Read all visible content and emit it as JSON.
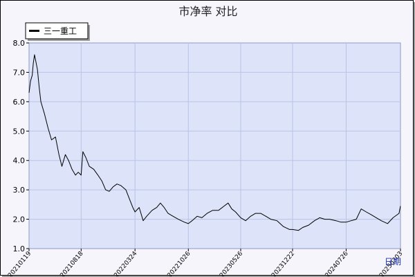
{
  "chart_data": {
    "type": "line",
    "title": "市净率  对比",
    "xlabel": "日期",
    "ylabel": "",
    "ylim": [
      1.0,
      8.0
    ],
    "yticks": [
      "1.0",
      "2.0",
      "3.0",
      "4.0",
      "5.0",
      "6.0",
      "7.0",
      "8.0"
    ],
    "xticks": [
      "20210119",
      "20210818",
      "20220324",
      "20221026",
      "20230526",
      "20231222",
      "20240726",
      "20250303"
    ],
    "grid": true,
    "legend_position": "top-left",
    "colors": {
      "plot_background": "#dde3f8",
      "grid": "#b9c3e6",
      "line": "#000000"
    },
    "series": [
      {
        "name": "三一重工",
        "points": [
          [
            "20210119",
            6.3
          ],
          [
            "20210125",
            6.7
          ],
          [
            "20210201",
            6.9
          ],
          [
            "20210205",
            7.3
          ],
          [
            "20210210",
            7.6
          ],
          [
            "20210222",
            7.1
          ],
          [
            "20210301",
            6.5
          ],
          [
            "20210308",
            6.0
          ],
          [
            "20210322",
            5.6
          ],
          [
            "20210406",
            5.1
          ],
          [
            "20210420",
            4.7
          ],
          [
            "20210506",
            4.8
          ],
          [
            "20210520",
            4.2
          ],
          [
            "20210601",
            3.8
          ],
          [
            "20210615",
            4.2
          ],
          [
            "20210628",
            4.0
          ],
          [
            "20210712",
            3.7
          ],
          [
            "20210726",
            3.5
          ],
          [
            "20210806",
            3.6
          ],
          [
            "20210818",
            3.5
          ],
          [
            "20210825",
            4.3
          ],
          [
            "20210906",
            4.1
          ],
          [
            "20210920",
            3.8
          ],
          [
            "20211008",
            3.7
          ],
          [
            "20211025",
            3.5
          ],
          [
            "20211110",
            3.3
          ],
          [
            "20211125",
            3.0
          ],
          [
            "20211210",
            2.95
          ],
          [
            "20211225",
            3.1
          ],
          [
            "20220110",
            3.2
          ],
          [
            "20220125",
            3.15
          ],
          [
            "20220215",
            3.0
          ],
          [
            "20220301",
            2.7
          ],
          [
            "20220315",
            2.4
          ],
          [
            "20220324",
            2.25
          ],
          [
            "20220410",
            2.4
          ],
          [
            "20220426",
            1.95
          ],
          [
            "20220510",
            2.1
          ],
          [
            "20220601",
            2.3
          ],
          [
            "20220620",
            2.4
          ],
          [
            "20220705",
            2.55
          ],
          [
            "20220720",
            2.4
          ],
          [
            "20220805",
            2.2
          ],
          [
            "20220825",
            2.1
          ],
          [
            "20220915",
            2.0
          ],
          [
            "20221010",
            1.9
          ],
          [
            "20221026",
            1.85
          ],
          [
            "20221110",
            1.95
          ],
          [
            "20221201",
            2.1
          ],
          [
            "20221220",
            2.05
          ],
          [
            "20230110",
            2.2
          ],
          [
            "20230201",
            2.3
          ],
          [
            "20230225",
            2.3
          ],
          [
            "20230320",
            2.45
          ],
          [
            "20230405",
            2.55
          ],
          [
            "20230420",
            2.35
          ],
          [
            "20230505",
            2.25
          ],
          [
            "20230526",
            2.05
          ],
          [
            "20230615",
            1.95
          ],
          [
            "20230705",
            2.1
          ],
          [
            "20230725",
            2.2
          ],
          [
            "20230815",
            2.2
          ],
          [
            "20230905",
            2.1
          ],
          [
            "20230925",
            2.0
          ],
          [
            "20231020",
            1.95
          ],
          [
            "20231115",
            1.75
          ],
          [
            "20231210",
            1.65
          ],
          [
            "20231222",
            1.65
          ],
          [
            "20240115",
            1.62
          ],
          [
            "20240201",
            1.72
          ],
          [
            "20240225",
            1.8
          ],
          [
            "20240320",
            1.95
          ],
          [
            "20240410",
            2.05
          ],
          [
            "20240501",
            2.0
          ],
          [
            "20240520",
            2.0
          ],
          [
            "20240615",
            1.95
          ],
          [
            "20240705",
            1.9
          ],
          [
            "20240726",
            1.9
          ],
          [
            "20240815",
            1.95
          ],
          [
            "20240905",
            2.0
          ],
          [
            "20240925",
            2.35
          ],
          [
            "20241015",
            2.25
          ],
          [
            "20241105",
            2.15
          ],
          [
            "20241125",
            2.05
          ],
          [
            "20241215",
            1.95
          ],
          [
            "20250110",
            1.85
          ],
          [
            "20250201",
            2.05
          ],
          [
            "20250225",
            2.2
          ],
          [
            "20250303",
            2.45
          ]
        ]
      }
    ]
  }
}
